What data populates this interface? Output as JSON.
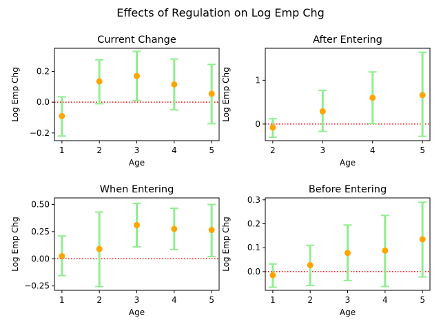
{
  "figure": {
    "suptitle": "Effects of Regulation on Log Emp Chg"
  },
  "style": {
    "errorbar_color": "#90ee90",
    "point_color": "#ffa500",
    "zero_line_color": "#ff0000",
    "axes_color": "#000000"
  },
  "chart_data": [
    {
      "type": "errorbar",
      "title": "Current Change",
      "xlabel": "Age",
      "ylabel": "Log Emp Chg",
      "x": [
        1,
        2,
        3,
        4,
        5
      ],
      "y": [
        -0.09,
        0.135,
        0.17,
        0.115,
        0.055
      ],
      "lower": [
        -0.22,
        -0.01,
        0.01,
        -0.05,
        -0.14
      ],
      "upper": [
        0.035,
        0.275,
        0.33,
        0.28,
        0.245
      ],
      "xlim": [
        0.8,
        5.2
      ],
      "ylim": [
        -0.25,
        0.35
      ],
      "xticks": [
        1,
        2,
        3,
        4,
        5
      ],
      "yticks": [
        -0.2,
        0.0,
        0.2
      ],
      "ytick_labels": [
        "−0.2",
        "0.0",
        "0.2"
      ],
      "zero_line": 0
    },
    {
      "type": "errorbar",
      "title": "After Entering",
      "xlabel": "Age",
      "ylabel": "Log Emp Chg",
      "x": [
        2,
        3,
        4,
        5
      ],
      "y": [
        -0.08,
        0.29,
        0.6,
        0.66
      ],
      "lower": [
        -0.3,
        -0.17,
        0.01,
        -0.28
      ],
      "upper": [
        0.12,
        0.77,
        1.19,
        1.64
      ],
      "xlim": [
        1.85,
        5.15
      ],
      "ylim": [
        -0.38,
        1.73
      ],
      "xticks": [
        2,
        3,
        4,
        5
      ],
      "yticks": [
        0,
        1
      ],
      "ytick_labels": [
        "0",
        "1"
      ],
      "zero_line": 0
    },
    {
      "type": "errorbar",
      "title": "When Entering",
      "xlabel": "Age",
      "ylabel": "Log Emp Chg",
      "x": [
        1,
        2,
        3,
        4,
        5
      ],
      "y": [
        0.025,
        0.09,
        0.31,
        0.275,
        0.265
      ],
      "lower": [
        -0.155,
        -0.255,
        0.11,
        0.085,
        0.02
      ],
      "upper": [
        0.21,
        0.43,
        0.51,
        0.465,
        0.5
      ],
      "xlim": [
        0.8,
        5.2
      ],
      "ylim": [
        -0.29,
        0.56
      ],
      "xticks": [
        1,
        2,
        3,
        4,
        5
      ],
      "yticks": [
        -0.25,
        0.0,
        0.25,
        0.5
      ],
      "ytick_labels": [
        "−0.25",
        "0.00",
        "0.25",
        "0.50"
      ],
      "zero_line": 0
    },
    {
      "type": "errorbar",
      "title": "Before Entering",
      "xlabel": "Age",
      "ylabel": "Log Emp Chg",
      "x": [
        1,
        2,
        3,
        4,
        5
      ],
      "y": [
        -0.015,
        0.027,
        0.078,
        0.088,
        0.135
      ],
      "lower": [
        -0.065,
        -0.058,
        -0.037,
        -0.062,
        -0.022
      ],
      "upper": [
        0.032,
        0.11,
        0.195,
        0.235,
        0.29
      ],
      "xlim": [
        0.8,
        5.2
      ],
      "ylim": [
        -0.078,
        0.308
      ],
      "xticks": [
        1,
        2,
        3,
        4,
        5
      ],
      "yticks": [
        0.0,
        0.1,
        0.2,
        0.3
      ],
      "ytick_labels": [
        "0.0",
        "0.1",
        "0.2",
        "0.3"
      ],
      "zero_line": 0
    }
  ]
}
